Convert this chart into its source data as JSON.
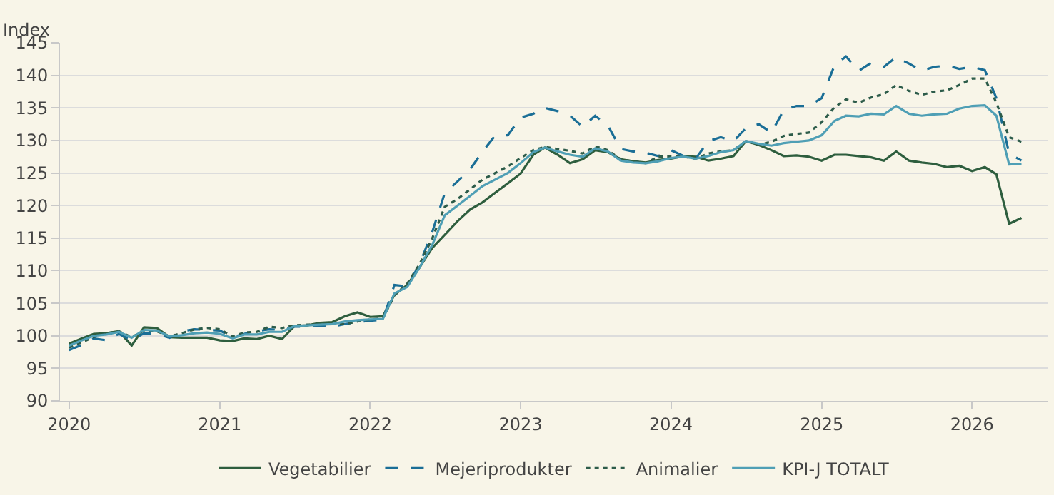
{
  "chart_data": {
    "type": "line",
    "ylabel": "Index",
    "x": [
      "2020-01",
      "2020-02",
      "2020-03",
      "2020-04",
      "2020-05",
      "2020-06",
      "2020-07",
      "2020-08",
      "2020-09",
      "2020-10",
      "2020-11",
      "2020-12",
      "2021-01",
      "2021-02",
      "2021-03",
      "2021-04",
      "2021-05",
      "2021-06",
      "2021-07",
      "2021-08",
      "2021-09",
      "2021-10",
      "2021-11",
      "2021-12",
      "2022-01",
      "2022-02",
      "2022-03",
      "2022-04",
      "2022-05",
      "2022-06",
      "2022-07",
      "2022-08",
      "2022-09",
      "2022-10",
      "2022-11",
      "2022-12",
      "2023-01",
      "2023-02",
      "2023-03",
      "2023-04",
      "2023-05",
      "2023-06",
      "2023-07",
      "2023-08",
      "2023-09",
      "2023-10",
      "2023-11",
      "2023-12",
      "2024-01",
      "2024-02",
      "2024-03",
      "2024-04",
      "2024-05",
      "2024-06",
      "2024-07",
      "2024-08",
      "2024-09",
      "2024-10",
      "2024-11",
      "2024-12",
      "2025-01",
      "2025-02",
      "2025-03",
      "2025-04",
      "2025-05",
      "2025-06",
      "2025-07",
      "2025-08",
      "2025-09",
      "2025-10",
      "2025-11",
      "2025-12",
      "2026-01",
      "2026-02",
      "2026-03",
      "2026-04",
      "2026-05"
    ],
    "series": [
      {
        "name": "Vegetabilier",
        "color": "#2e5e3e",
        "line_style": "solid",
        "values": [
          98.8,
          99.6,
          100.3,
          100.4,
          100.7,
          98.5,
          101.3,
          101.2,
          99.8,
          99.7,
          99.7,
          99.7,
          99.3,
          99.2,
          99.6,
          99.5,
          100.0,
          99.5,
          101.5,
          101.6,
          102.0,
          102.1,
          103.0,
          103.6,
          102.9,
          103.0,
          106.3,
          107.8,
          110.5,
          113.5,
          115.5,
          117.6,
          119.4,
          120.5,
          122.0,
          123.4,
          124.9,
          127.8,
          128.9,
          127.8,
          126.5,
          127.1,
          128.5,
          128.2,
          127.1,
          126.8,
          126.6,
          127.0,
          127.2,
          127.6,
          127.5,
          126.9,
          127.2,
          127.6,
          129.9,
          129.3,
          128.5,
          127.6,
          127.7,
          127.5,
          126.9,
          127.8,
          127.8,
          127.6,
          127.4,
          126.9,
          128.3,
          126.9,
          126.6,
          126.4,
          125.9,
          126.1,
          125.3,
          125.9,
          124.8,
          117.2,
          118.1
        ]
      },
      {
        "name": "Mejeriprodukter",
        "color": "#1a6e96",
        "line_style": "dashed",
        "values": [
          97.8,
          98.6,
          99.6,
          99.3,
          100.3,
          99.3,
          100.4,
          100.3,
          99.7,
          100.7,
          101.0,
          100.9,
          100.8,
          99.8,
          100.3,
          100.7,
          101.0,
          100.9,
          101.4,
          101.4,
          101.6,
          101.4,
          101.8,
          102.1,
          102.3,
          102.5,
          107.8,
          107.6,
          111.0,
          116.0,
          121.9,
          123.7,
          125.6,
          128.3,
          130.8,
          130.8,
          133.5,
          134.1,
          135.0,
          134.5,
          133.8,
          132.1,
          133.8,
          132.3,
          128.7,
          128.3,
          128.1,
          127.6,
          128.5,
          127.6,
          127.2,
          129.9,
          130.5,
          129.9,
          131.9,
          132.5,
          131.2,
          134.7,
          135.3,
          135.3,
          136.5,
          141.5,
          142.9,
          140.7,
          141.9,
          141.3,
          142.8,
          141.8,
          140.7,
          141.3,
          141.5,
          141.0,
          141.3,
          140.8,
          136.5,
          128.0,
          126.9
        ]
      },
      {
        "name": "Animalier",
        "color": "#2d5c4a",
        "line_style": "dotted",
        "values": [
          98.2,
          99.0,
          99.8,
          100.4,
          100.7,
          99.8,
          100.8,
          100.7,
          99.9,
          100.4,
          101.0,
          101.2,
          101.0,
          99.9,
          100.5,
          100.6,
          101.4,
          101.2,
          101.6,
          101.7,
          101.8,
          101.8,
          101.8,
          102.2,
          102.5,
          102.7,
          106.2,
          108.0,
          111.0,
          115.0,
          119.8,
          121.0,
          122.5,
          124.0,
          125.0,
          126.0,
          127.3,
          128.5,
          129.0,
          128.7,
          128.4,
          128.0,
          129.1,
          128.5,
          127.1,
          126.8,
          126.5,
          127.5,
          127.5,
          127.5,
          127.2,
          128.0,
          128.3,
          128.5,
          129.9,
          129.3,
          129.8,
          130.7,
          131.0,
          131.2,
          132.8,
          135.1,
          136.3,
          135.8,
          136.6,
          137.1,
          138.5,
          137.6,
          137.0,
          137.5,
          137.7,
          138.5,
          139.5,
          139.5,
          135.8,
          130.5,
          129.8
        ]
      },
      {
        "name": "KPI-J TOTALT",
        "color": "#4f9fb5",
        "line_style": "solid",
        "values": [
          98.5,
          99.3,
          100.0,
          100.2,
          100.6,
          99.7,
          100.9,
          100.8,
          99.9,
          100.1,
          100.4,
          100.5,
          100.3,
          99.6,
          100.2,
          100.2,
          100.6,
          100.6,
          101.5,
          101.6,
          101.7,
          101.8,
          102.2,
          102.4,
          102.5,
          102.6,
          106.5,
          107.5,
          110.5,
          114.0,
          118.5,
          120.0,
          121.5,
          123.0,
          124.0,
          125.0,
          126.5,
          128.2,
          128.9,
          128.3,
          127.8,
          127.5,
          128.8,
          128.3,
          126.9,
          126.6,
          126.5,
          126.8,
          127.3,
          127.5,
          127.2,
          127.6,
          128.2,
          128.5,
          129.9,
          129.5,
          129.2,
          129.6,
          129.8,
          130.0,
          130.8,
          133.0,
          133.8,
          133.7,
          134.1,
          134.0,
          135.3,
          134.1,
          133.8,
          134.0,
          134.1,
          134.9,
          135.3,
          135.4,
          133.8,
          126.3,
          126.4
        ]
      }
    ],
    "xlim": [
      "2019-12-10",
      "2026-07-05"
    ],
    "xticks": [
      {
        "value": "2020-01-01",
        "label": "2020"
      },
      {
        "value": "2021-01-01",
        "label": "2021"
      },
      {
        "value": "2022-01-01",
        "label": "2022"
      },
      {
        "value": "2023-01-01",
        "label": "2023"
      },
      {
        "value": "2024-01-01",
        "label": "2024"
      },
      {
        "value": "2025-01-01",
        "label": "2025"
      },
      {
        "value": "2026-01-01",
        "label": "2026"
      }
    ],
    "ylim": [
      90,
      145
    ],
    "yticks": [
      90,
      95,
      100,
      105,
      110,
      115,
      120,
      125,
      130,
      135,
      140,
      145
    ],
    "grid": "y",
    "legend": "bottom",
    "marker": "none"
  }
}
